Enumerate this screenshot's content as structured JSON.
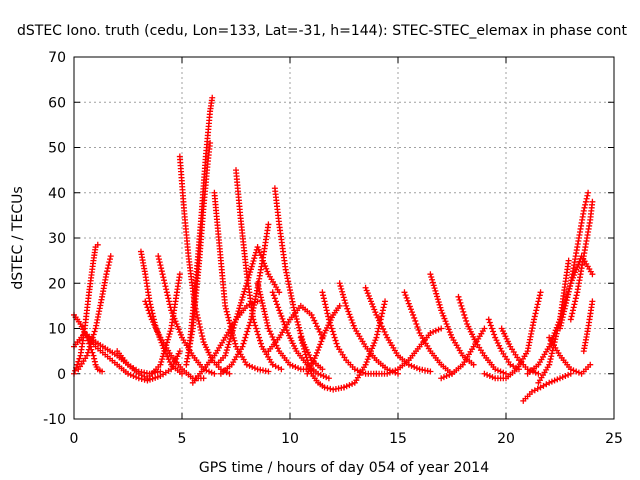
{
  "chart_data": {
    "type": "scatter",
    "title": "dSTEC Iono. truth (cedu, Lon=133, Lat=-31, h=144): STEC-STEC_elemax in phase cont",
    "xlabel": "GPS time / hours of day 054 of year 2014",
    "ylabel": "dSTEC  / TECUs",
    "xlim": [
      0,
      25
    ],
    "ylim": [
      -10,
      70
    ],
    "xticks": [
      0,
      5,
      10,
      15,
      20,
      25
    ],
    "yticks": [
      -10,
      0,
      10,
      20,
      30,
      40,
      50,
      60,
      70
    ],
    "grid": true,
    "marker": "+",
    "color": "#ff0000",
    "series": [
      {
        "x": [
          0.0,
          0.3,
          0.6,
          0.9,
          1.0,
          1.1,
          1.3
        ],
        "y": [
          13,
          11,
          8,
          4,
          2,
          1,
          0.5
        ]
      },
      {
        "x": [
          0.0,
          0.3,
          0.5,
          0.7,
          0.9,
          1.0,
          1.1
        ],
        "y": [
          0,
          4,
          10,
          18,
          25,
          28,
          28.5
        ]
      },
      {
        "x": [
          0.2,
          0.6,
          1.0,
          1.3,
          1.5,
          1.7
        ],
        "y": [
          1,
          4,
          10,
          17,
          22,
          26
        ]
      },
      {
        "x": [
          0.0,
          0.5,
          1.0,
          2.0,
          2.5,
          3.0,
          3.5,
          4.0
        ],
        "y": [
          6,
          9,
          7,
          4,
          2,
          0.5,
          0,
          0.5
        ]
      },
      {
        "x": [
          0.5,
          1.0,
          2.0,
          2.5,
          3.0,
          3.4,
          4.0,
          4.5,
          4.9
        ],
        "y": [
          9,
          6,
          2,
          0,
          -1,
          -1.5,
          -0.5,
          1,
          5
        ]
      },
      {
        "x": [
          2.0,
          2.5,
          3.0,
          3.4,
          4.0,
          4.5,
          4.9
        ],
        "y": [
          5,
          2,
          0,
          -1,
          2,
          10,
          22
        ]
      },
      {
        "x": [
          3.1,
          3.3,
          3.5,
          3.8,
          4.2,
          4.5,
          5.0
        ],
        "y": [
          27,
          22,
          16,
          10,
          5,
          2,
          0
        ]
      },
      {
        "x": [
          3.3,
          3.6,
          4.0,
          4.5,
          5.0,
          5.5,
          6.0
        ],
        "y": [
          16,
          12,
          8,
          4,
          1,
          -1,
          -1
        ]
      },
      {
        "x": [
          3.9,
          4.2,
          4.5,
          5.0,
          5.5,
          6.0,
          6.5
        ],
        "y": [
          26,
          20,
          14,
          8,
          4,
          1,
          0
        ]
      },
      {
        "x": [
          4.9,
          5.1,
          5.3,
          5.6,
          6.0,
          6.4,
          6.8,
          7.2
        ],
        "y": [
          48,
          36,
          26,
          15,
          7,
          3,
          1,
          0
        ]
      },
      {
        "x": [
          5.2,
          5.5,
          5.8,
          6.0,
          6.2,
          6.3
        ],
        "y": [
          2,
          10,
          25,
          37,
          47,
          51
        ]
      },
      {
        "x": [
          5.3,
          5.6,
          5.9,
          6.1,
          6.3,
          6.4
        ],
        "y": [
          4,
          18,
          35,
          48,
          58,
          61
        ]
      },
      {
        "x": [
          6.5,
          6.8,
          7.0,
          7.5,
          8.0,
          8.5,
          9.0
        ],
        "y": [
          40,
          25,
          15,
          6,
          2,
          1,
          0.5
        ]
      },
      {
        "x": [
          5.5,
          6.0,
          6.5,
          7.0,
          7.5,
          8.0,
          8.5
        ],
        "y": [
          -2,
          1,
          4,
          8,
          12,
          15,
          16
        ]
      },
      {
        "x": [
          6.6,
          7.0,
          7.5,
          8.0,
          8.5,
          9.0,
          9.5
        ],
        "y": [
          2,
          4,
          12,
          20,
          28,
          22,
          18
        ]
      },
      {
        "x": [
          7.5,
          7.7,
          8.0,
          8.3,
          8.7,
          9.2,
          9.6
        ],
        "y": [
          45,
          35,
          22,
          12,
          6,
          2,
          1
        ]
      },
      {
        "x": [
          6.8,
          7.3,
          7.8,
          8.2,
          8.5,
          8.8,
          9.0
        ],
        "y": [
          0,
          2,
          6,
          12,
          19,
          27,
          33
        ]
      },
      {
        "x": [
          8.5,
          9.0,
          9.5,
          10.0,
          10.5,
          11.0
        ],
        "y": [
          20,
          10,
          5,
          2,
          1,
          1
        ]
      },
      {
        "x": [
          9.3,
          9.5,
          9.8,
          10.2,
          10.6,
          11.0,
          11.5
        ],
        "y": [
          41,
          33,
          23,
          14,
          7,
          3,
          1
        ]
      },
      {
        "x": [
          9.2,
          9.5,
          9.9,
          10.3,
          10.8,
          11.3,
          11.8
        ],
        "y": [
          18,
          14,
          9,
          5,
          2,
          0,
          -1
        ]
      },
      {
        "x": [
          9.0,
          9.5,
          10.0,
          10.5,
          11.0,
          11.5
        ],
        "y": [
          5,
          8,
          12,
          15,
          13,
          8
        ]
      },
      {
        "x": [
          10.5,
          10.8,
          11.0,
          11.3,
          11.6,
          12.0,
          12.5
        ],
        "y": [
          8,
          3,
          0,
          -2,
          -3,
          -3.5,
          -3
        ]
      },
      {
        "x": [
          10.8,
          11.2,
          11.6,
          12.0,
          12.3
        ],
        "y": [
          0,
          4,
          9,
          13,
          15
        ]
      },
      {
        "x": [
          11.5,
          11.8,
          12.2,
          12.6,
          13.0,
          13.5,
          14.0
        ],
        "y": [
          18,
          12,
          6,
          3,
          1,
          0,
          0
        ]
      },
      {
        "x": [
          12.3,
          12.6,
          13.0,
          13.5,
          14.0,
          14.5,
          15.0
        ],
        "y": [
          20,
          15,
          10,
          6,
          3,
          1,
          0
        ]
      },
      {
        "x": [
          12.5,
          13.0,
          13.5,
          14.0,
          14.4
        ],
        "y": [
          -3,
          -2,
          2,
          8,
          16
        ]
      },
      {
        "x": [
          13.5,
          14.0,
          14.5,
          15.0,
          15.5,
          16.0,
          16.5
        ],
        "y": [
          19,
          13,
          8,
          4,
          2,
          1,
          0.5
        ]
      },
      {
        "x": [
          14.0,
          14.5,
          15.0,
          15.5,
          16.0,
          16.5,
          17.0
        ],
        "y": [
          0,
          0,
          1,
          3,
          6,
          9,
          10
        ]
      },
      {
        "x": [
          15.3,
          15.7,
          16.0,
          16.5,
          17.0,
          17.5
        ],
        "y": [
          18,
          13,
          9,
          5,
          2,
          0
        ]
      },
      {
        "x": [
          16.5,
          17.0,
          17.5,
          18.0,
          18.5
        ],
        "y": [
          22,
          14,
          8,
          4,
          2
        ]
      },
      {
        "x": [
          17.0,
          17.5,
          18.0,
          18.5,
          19.0
        ],
        "y": [
          -1,
          0,
          2,
          6,
          10
        ]
      },
      {
        "x": [
          17.8,
          18.2,
          18.6,
          19.0,
          19.5,
          20.0
        ],
        "y": [
          17,
          11,
          7,
          4,
          1,
          0
        ]
      },
      {
        "x": [
          19.2,
          19.5,
          19.8,
          20.2,
          20.6
        ],
        "y": [
          12,
          8,
          5,
          2,
          1
        ]
      },
      {
        "x": [
          19.8,
          20.2,
          20.6,
          21.0,
          21.5
        ],
        "y": [
          10,
          6,
          3,
          1,
          0
        ]
      },
      {
        "x": [
          19.0,
          19.5,
          20.0,
          20.5,
          21.0,
          21.3,
          21.6
        ],
        "y": [
          0,
          -1,
          -1,
          1,
          5,
          12,
          18
        ]
      },
      {
        "x": [
          20.8,
          21.2,
          21.6,
          22.0,
          22.5,
          23.0
        ],
        "y": [
          -6,
          -4,
          -3,
          -2,
          -1,
          0
        ]
      },
      {
        "x": [
          21.0,
          21.5,
          22.0,
          22.5,
          23.0,
          23.5,
          24.0
        ],
        "y": [
          0,
          2,
          6,
          12,
          20,
          26,
          22
        ]
      },
      {
        "x": [
          21.5,
          22.0,
          22.5,
          22.9
        ],
        "y": [
          -2,
          2,
          12,
          25
        ]
      },
      {
        "x": [
          22.5,
          23.0,
          23.3,
          23.6,
          23.8
        ],
        "y": [
          10,
          20,
          28,
          36,
          40
        ]
      },
      {
        "x": [
          22.0,
          22.5,
          23.0,
          23.5,
          23.9
        ],
        "y": [
          8,
          4,
          1,
          0,
          2
        ]
      },
      {
        "x": [
          23.0,
          23.3,
          23.6,
          23.9,
          24.0
        ],
        "y": [
          12,
          18,
          26,
          34,
          38
        ]
      },
      {
        "x": [
          23.6,
          23.8,
          24.0
        ],
        "y": [
          5,
          10,
          16
        ]
      }
    ]
  }
}
